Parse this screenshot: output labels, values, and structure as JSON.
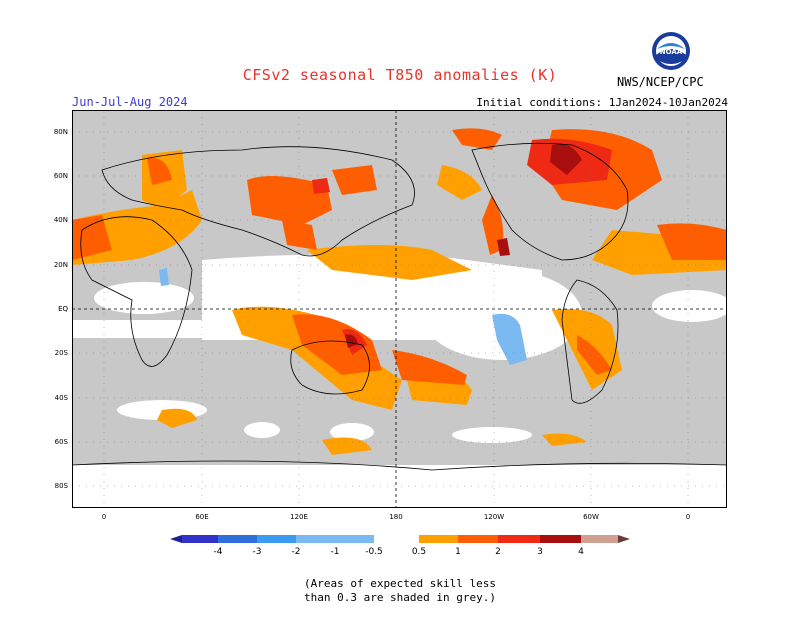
{
  "title": "CFSv2 seasonal T850 anomalies (K)",
  "season": "Jun-Jul-Aug 2024",
  "initial_conditions": "Initial conditions: 1Jan2024-10Jan2024",
  "agency": "NWS/NCEP/CPC",
  "logo_text": "NOAA",
  "map": {
    "lat_labels": [
      "80N",
      "60N",
      "40N",
      "20N",
      "EQ",
      "20S",
      "40S",
      "60S",
      "80S"
    ],
    "lon_labels": [
      "0",
      "60E",
      "120E",
      "180",
      "120W",
      "60W",
      "0"
    ]
  },
  "legend": {
    "labels": [
      "-4",
      "-3",
      "-2",
      "-1",
      "-0.5",
      "0.5",
      "1",
      "2",
      "3",
      "4"
    ],
    "colors": {
      "lt4": "#1e1e96",
      "m4": "#3232c8",
      "m3": "#2e6fdc",
      "m2": "#3c9bf0",
      "m1": "#7abaf0",
      "neutral": "#ffffff",
      "p05": "#ffa000",
      "p1": "#ff5e00",
      "p2": "#ee2a14",
      "p3": "#a80e0e",
      "p4": "#cf9f90",
      "gt4": "#6a3a3a"
    }
  },
  "note_line1": "(Areas of expected skill less",
  "note_line2": "than 0.3 are shaded in grey.)"
}
